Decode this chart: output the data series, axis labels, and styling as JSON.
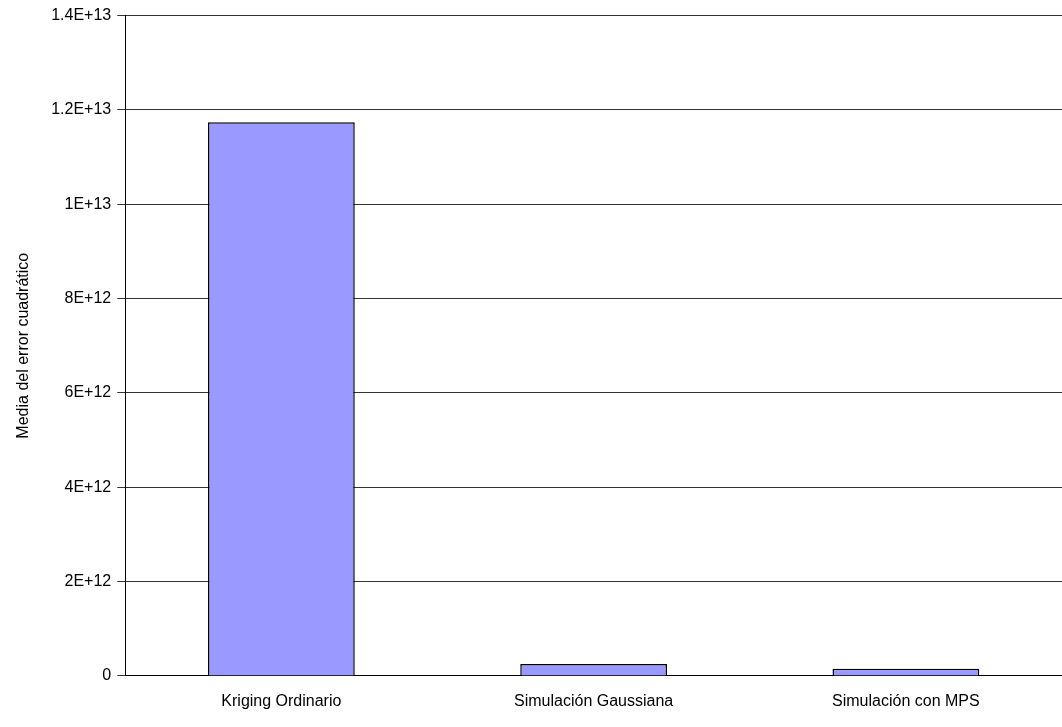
{
  "chart_data": {
    "type": "bar",
    "ylabel": "Media del error cuadrático",
    "categories": [
      "Kriging Ordinario",
      "Simulación Gaussiana",
      "Simulación con MPS"
    ],
    "values": [
      11740000000000,
      250000000000,
      150000000000
    ],
    "color": "#9999ff",
    "ylim": [
      0,
      14000000000000
    ],
    "yticks": [
      0,
      {
        "value": 2000000000000,
        "label": "2E+12"
      },
      {
        "value": 4000000000000,
        "label": "4E+12"
      },
      {
        "value": 6000000000000,
        "label": "6E+12"
      },
      {
        "value": 8000000000000,
        "label": "8E+12"
      },
      {
        "value": 10000000000000,
        "label": "1E+13"
      },
      {
        "value": 12000000000000,
        "label": "1.2E+13"
      },
      {
        "value": 14000000000000,
        "label": "1.4E+13"
      }
    ],
    "grid": "y",
    "legend": false
  }
}
